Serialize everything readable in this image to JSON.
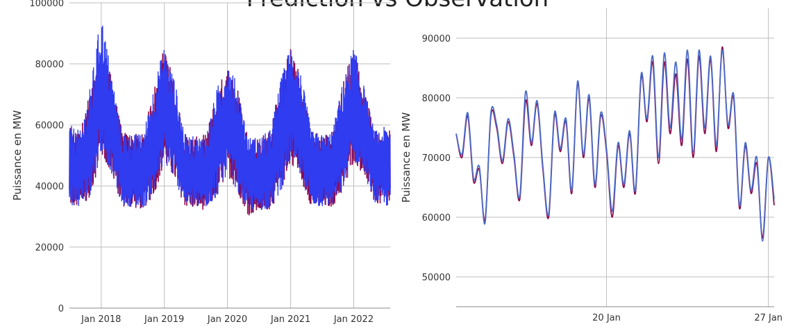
{
  "title": "Prédiction vs Observation",
  "chart_data": [
    {
      "type": "line",
      "ylabel": "Puissance en MW",
      "xlabel": "",
      "ylim": [
        0,
        100000
      ],
      "yticks": [
        0,
        20000,
        40000,
        60000,
        80000,
        100000
      ],
      "ytick_labels": [
        "0",
        "20000",
        "40000",
        "60000",
        "80000",
        "100000"
      ],
      "xlim": [
        "2017-07-01",
        "2022-07-31"
      ],
      "xticks": [
        "2018-01-01",
        "2019-01-01",
        "2020-01-01",
        "2021-01-01",
        "2022-01-01"
      ],
      "xtick_labels": [
        "Jan 2018",
        "Jan 2019",
        "Jan 2020",
        "Jan 2021",
        "Jan 2022"
      ],
      "grid": true,
      "series": [
        {
          "color": "#8b0a50",
          "envelope": {
            "x": [
              "2017-07-01",
              "2017-09-01",
              "2017-11-01",
              "2018-01-01",
              "2018-03-01",
              "2018-05-01",
              "2018-07-01",
              "2018-09-01",
              "2018-11-01",
              "2019-01-01",
              "2019-03-01",
              "2019-05-01",
              "2019-07-01",
              "2019-09-01",
              "2019-11-01",
              "2020-01-01",
              "2020-03-01",
              "2020-05-01",
              "2020-07-01",
              "2020-09-01",
              "2020-11-01",
              "2021-01-01",
              "2021-03-01",
              "2021-05-01",
              "2021-07-01",
              "2021-09-01",
              "2021-11-01",
              "2022-01-01",
              "2022-03-01",
              "2022-05-01",
              "2022-07-31"
            ],
            "low": [
              32000,
              31000,
              35000,
              48000,
              42000,
              32000,
              31500,
              31000,
              35000,
              45000,
              40000,
              32000,
              31000,
              31000,
              34000,
              42000,
              36000,
              29000,
              30000,
              31000,
              35000,
              46000,
              40000,
              32000,
              31000,
              32000,
              36000,
              46000,
              42000,
              33000,
              31000
            ],
            "high": [
              59000,
              58000,
              72000,
              84000,
              76000,
              58000,
              57000,
              57000,
              72000,
              86000,
              74000,
              57000,
              56000,
              57000,
              71000,
              80000,
              72000,
              56000,
              56000,
              58000,
              73000,
              86000,
              76000,
              58000,
              57000,
              58000,
              74000,
              86000,
              72000,
              58000,
              59000
            ]
          }
        },
        {
          "color": "#2f3cf0",
          "envelope": {
            "x": [
              "2017-07-01",
              "2017-09-01",
              "2017-11-01",
              "2018-01-01",
              "2018-03-01",
              "2018-05-01",
              "2018-07-01",
              "2018-09-01",
              "2018-11-01",
              "2019-01-01",
              "2019-03-01",
              "2019-05-01",
              "2019-07-01",
              "2019-09-01",
              "2019-11-01",
              "2020-01-01",
              "2020-03-01",
              "2020-05-01",
              "2020-07-01",
              "2020-09-01",
              "2020-11-01",
              "2021-01-01",
              "2021-03-01",
              "2021-05-01",
              "2021-07-01",
              "2021-09-01",
              "2021-11-01",
              "2022-01-01",
              "2022-03-01",
              "2022-05-01",
              "2022-07-31"
            ],
            "low": [
              32500,
              31500,
              35500,
              48500,
              42500,
              32500,
              32000,
              31500,
              35500,
              45500,
              40500,
              32500,
              31500,
              31500,
              34500,
              42500,
              36500,
              30000,
              30500,
              31500,
              35500,
              46500,
              40500,
              32500,
              31500,
              32500,
              36500,
              46500,
              42500,
              33500,
              31500
            ],
            "high": [
              60000,
              58000,
              73000,
              97000,
              77000,
              58000,
              57000,
              57000,
              73000,
              86000,
              75000,
              57000,
              56000,
              57000,
              72000,
              81000,
              73000,
              56000,
              56000,
              58000,
              74000,
              87000,
              77000,
              58000,
              57000,
              58000,
              75000,
              86000,
              73000,
              58000,
              60000
            ]
          }
        }
      ]
    },
    {
      "type": "line",
      "ylabel": "Puissance en MW",
      "xlabel": "",
      "ylim": [
        45000,
        95000
      ],
      "yticks": [
        50000,
        60000,
        70000,
        80000,
        90000
      ],
      "ytick_labels": [
        "50000",
        "60000",
        "70000",
        "80000",
        "90000"
      ],
      "xlim": [
        "2022-01-13T12:00",
        "2022-01-27T06:00"
      ],
      "xticks": [
        "2022-01-20",
        "2022-01-27"
      ],
      "xtick_labels": [
        "20 Jan",
        "27 Jan"
      ],
      "grid": true,
      "series": [
        {
          "color": "#8b0a50",
          "points": [
            [
              "2022-01-13T12:00",
              74000
            ],
            [
              "2022-01-13T18:00",
              70000
            ],
            [
              "2022-01-14T00:00",
              77000
            ],
            [
              "2022-01-14T06:00",
              66000
            ],
            [
              "2022-01-14T12:00",
              68000
            ],
            [
              "2022-01-14T18:00",
              59500
            ],
            [
              "2022-01-15T00:00",
              77000
            ],
            [
              "2022-01-15T06:00",
              75000
            ],
            [
              "2022-01-15T12:00",
              69000
            ],
            [
              "2022-01-15T18:00",
              76000
            ],
            [
              "2022-01-16T00:00",
              70000
            ],
            [
              "2022-01-16T06:00",
              63000
            ],
            [
              "2022-01-16T12:00",
              79500
            ],
            [
              "2022-01-16T18:00",
              72000
            ],
            [
              "2022-01-17T00:00",
              79000
            ],
            [
              "2022-01-17T06:00",
              68000
            ],
            [
              "2022-01-17T12:00",
              60000
            ],
            [
              "2022-01-17T18:00",
              77000
            ],
            [
              "2022-01-18T00:00",
              71000
            ],
            [
              "2022-01-18T06:00",
              76000
            ],
            [
              "2022-01-18T12:00",
              64000
            ],
            [
              "2022-01-18T18:00",
              82500
            ],
            [
              "2022-01-19T00:00",
              70000
            ],
            [
              "2022-01-19T06:00",
              80000
            ],
            [
              "2022-01-19T12:00",
              65000
            ],
            [
              "2022-01-19T18:00",
              77000
            ],
            [
              "2022-01-20T00:00",
              71000
            ],
            [
              "2022-01-20T06:00",
              60000
            ],
            [
              "2022-01-20T12:00",
              72000
            ],
            [
              "2022-01-20T18:00",
              65000
            ],
            [
              "2022-01-21T00:00",
              74000
            ],
            [
              "2022-01-21T06:00",
              64000
            ],
            [
              "2022-01-21T12:00",
              83500
            ],
            [
              "2022-01-21T18:00",
              76000
            ],
            [
              "2022-01-22T00:00",
              86000
            ],
            [
              "2022-01-22T06:00",
              69000
            ],
            [
              "2022-01-22T12:00",
              86000
            ],
            [
              "2022-01-22T18:00",
              74000
            ],
            [
              "2022-01-23T00:00",
              84000
            ],
            [
              "2022-01-23T06:00",
              72000
            ],
            [
              "2022-01-23T12:00",
              86500
            ],
            [
              "2022-01-23T18:00",
              70000
            ],
            [
              "2022-01-24T00:00",
              87000
            ],
            [
              "2022-01-24T06:00",
              74000
            ],
            [
              "2022-01-24T12:00",
              86500
            ],
            [
              "2022-01-24T18:00",
              71000
            ],
            [
              "2022-01-25T00:00",
              88500
            ],
            [
              "2022-01-25T06:00",
              75000
            ],
            [
              "2022-01-25T12:00",
              80000
            ],
            [
              "2022-01-25T18:00",
              61500
            ],
            [
              "2022-01-26T00:00",
              72000
            ],
            [
              "2022-01-26T06:00",
              64000
            ],
            [
              "2022-01-26T12:00",
              69000
            ],
            [
              "2022-01-26T18:00",
              56500
            ],
            [
              "2022-01-27T00:00",
              70000
            ],
            [
              "2022-01-27T06:00",
              62000
            ]
          ]
        },
        {
          "color": "#4a6cc8",
          "points": [
            [
              "2022-01-13T12:00",
              74000
            ],
            [
              "2022-01-13T18:00",
              70500
            ],
            [
              "2022-01-14T00:00",
              77500
            ],
            [
              "2022-01-14T06:00",
              66500
            ],
            [
              "2022-01-14T12:00",
              68500
            ],
            [
              "2022-01-14T18:00",
              59000
            ],
            [
              "2022-01-15T00:00",
              77500
            ],
            [
              "2022-01-15T06:00",
              75500
            ],
            [
              "2022-01-15T12:00",
              69500
            ],
            [
              "2022-01-15T18:00",
              76500
            ],
            [
              "2022-01-16T00:00",
              70500
            ],
            [
              "2022-01-16T06:00",
              63500
            ],
            [
              "2022-01-16T12:00",
              81000
            ],
            [
              "2022-01-16T18:00",
              72500
            ],
            [
              "2022-01-17T00:00",
              79500
            ],
            [
              "2022-01-17T06:00",
              68500
            ],
            [
              "2022-01-17T12:00",
              60500
            ],
            [
              "2022-01-17T18:00",
              77500
            ],
            [
              "2022-01-18T00:00",
              71500
            ],
            [
              "2022-01-18T06:00",
              76500
            ],
            [
              "2022-01-18T12:00",
              64500
            ],
            [
              "2022-01-18T18:00",
              82800
            ],
            [
              "2022-01-19T00:00",
              70500
            ],
            [
              "2022-01-19T06:00",
              80500
            ],
            [
              "2022-01-19T12:00",
              65500
            ],
            [
              "2022-01-19T18:00",
              77500
            ],
            [
              "2022-01-20T00:00",
              71500
            ],
            [
              "2022-01-20T06:00",
              61000
            ],
            [
              "2022-01-20T12:00",
              72500
            ],
            [
              "2022-01-20T18:00",
              65500
            ],
            [
              "2022-01-21T00:00",
              74500
            ],
            [
              "2022-01-21T06:00",
              64500
            ],
            [
              "2022-01-21T12:00",
              84000
            ],
            [
              "2022-01-21T18:00",
              76500
            ],
            [
              "2022-01-22T00:00",
              87000
            ],
            [
              "2022-01-22T06:00",
              70000
            ],
            [
              "2022-01-22T12:00",
              87500
            ],
            [
              "2022-01-22T18:00",
              75000
            ],
            [
              "2022-01-23T00:00",
              86000
            ],
            [
              "2022-01-23T06:00",
              73000
            ],
            [
              "2022-01-23T12:00",
              88000
            ],
            [
              "2022-01-23T18:00",
              71000
            ],
            [
              "2022-01-24T00:00",
              88000
            ],
            [
              "2022-01-24T06:00",
              75000
            ],
            [
              "2022-01-24T12:00",
              87000
            ],
            [
              "2022-01-24T18:00",
              72000
            ],
            [
              "2022-01-25T00:00",
              88000
            ],
            [
              "2022-01-25T06:00",
              75500
            ],
            [
              "2022-01-25T12:00",
              80500
            ],
            [
              "2022-01-25T18:00",
              62000
            ],
            [
              "2022-01-26T00:00",
              72500
            ],
            [
              "2022-01-26T06:00",
              64500
            ],
            [
              "2022-01-26T12:00",
              70000
            ],
            [
              "2022-01-26T18:00",
              56000
            ],
            [
              "2022-01-27T00:00",
              70000
            ],
            [
              "2022-01-27T06:00",
              63000
            ]
          ]
        }
      ]
    }
  ]
}
